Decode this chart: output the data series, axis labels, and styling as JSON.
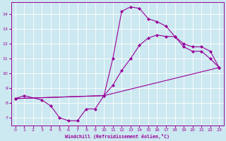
{
  "xlabel": "Windchill (Refroidissement éolien,°C)",
  "background_color": "#cce8f0",
  "grid_color": "#ffffff",
  "line_color": "#990099",
  "marker_color": "#990099",
  "series1_x": [
    0,
    1,
    3,
    4,
    5,
    6,
    7,
    8,
    9,
    10,
    11,
    12,
    13,
    14,
    15,
    16,
    17,
    18,
    19,
    20,
    21,
    22,
    23
  ],
  "series1_y": [
    8.3,
    8.5,
    8.2,
    7.8,
    7.0,
    6.8,
    6.8,
    7.6,
    7.6,
    8.5,
    11.0,
    14.2,
    14.5,
    14.4,
    13.7,
    13.5,
    13.2,
    12.5,
    11.8,
    11.5,
    11.5,
    11.0,
    10.4
  ],
  "series2_x": [
    0,
    10,
    11,
    12,
    13,
    14,
    15,
    16,
    17,
    18,
    19,
    20,
    21,
    22,
    23
  ],
  "series2_y": [
    8.3,
    8.5,
    9.2,
    10.2,
    11.0,
    11.9,
    12.4,
    12.6,
    12.5,
    12.5,
    12.0,
    11.8,
    11.8,
    11.5,
    10.4
  ],
  "series3_x": [
    0,
    10,
    23
  ],
  "series3_y": [
    8.3,
    8.5,
    10.4
  ],
  "xlim": [
    -0.5,
    23.5
  ],
  "ylim": [
    6.5,
    14.8
  ],
  "xticks": [
    0,
    1,
    2,
    3,
    4,
    5,
    6,
    7,
    8,
    9,
    10,
    11,
    12,
    13,
    14,
    15,
    16,
    17,
    18,
    19,
    20,
    21,
    22,
    23
  ],
  "yticks": [
    7,
    8,
    9,
    10,
    11,
    12,
    13,
    14
  ],
  "figsize": [
    3.2,
    2.0
  ],
  "dpi": 100
}
